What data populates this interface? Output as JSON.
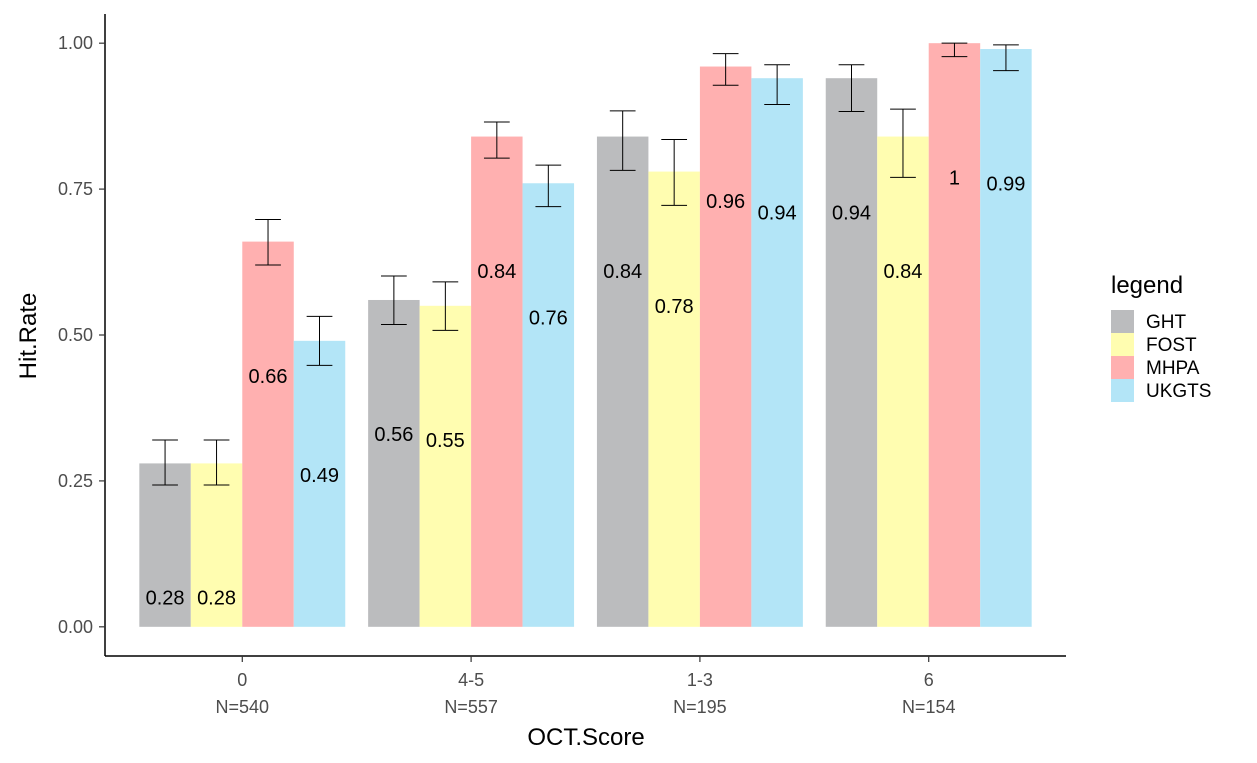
{
  "chart_data": {
    "type": "bar",
    "title": "",
    "xlabel": "OCT.Score",
    "ylabel": "Hit.Rate",
    "ylim": [
      -0.05,
      1.05
    ],
    "yticks": [
      "0.00",
      "0.25",
      "0.50",
      "0.75",
      "1.00"
    ],
    "ytick_values": [
      0,
      0.25,
      0.5,
      0.75,
      1.0
    ],
    "categories": [
      "0",
      "4-5",
      "1-3",
      "6"
    ],
    "category_sublabels": [
      "N=540",
      "N=557",
      "N=195",
      "N=154"
    ],
    "series": [
      {
        "name": "GHT",
        "color": "#BBBCBE",
        "values": [
          0.28,
          0.56,
          0.84,
          0.94
        ],
        "labels": [
          "0.28",
          "0.56",
          "0.84",
          "0.94"
        ],
        "error_low": [
          0.243,
          0.518,
          0.782,
          0.883
        ],
        "error_high": [
          0.32,
          0.601,
          0.884,
          0.963
        ]
      },
      {
        "name": "FOST",
        "color": "#FFFDB0",
        "values": [
          0.28,
          0.55,
          0.78,
          0.84
        ],
        "labels": [
          "0.28",
          "0.55",
          "0.78",
          "0.84"
        ],
        "error_low": [
          0.243,
          0.508,
          0.722,
          0.77
        ],
        "error_high": [
          0.32,
          0.591,
          0.835,
          0.887
        ]
      },
      {
        "name": "MHPA",
        "color": "#FFB0B0",
        "values": [
          0.66,
          0.84,
          0.96,
          1.0
        ],
        "labels": [
          "0.66",
          "0.84",
          "0.96",
          "1"
        ],
        "error_low": [
          0.62,
          0.803,
          0.928,
          0.977
        ],
        "error_high": [
          0.698,
          0.865,
          0.982,
          1.0
        ]
      },
      {
        "name": "UKGTS",
        "color": "#B3E5F7",
        "values": [
          0.49,
          0.76,
          0.94,
          0.99
        ],
        "labels": [
          "0.49",
          "0.76",
          "0.94",
          "0.99"
        ],
        "error_low": [
          0.448,
          0.72,
          0.895,
          0.953
        ],
        "error_high": [
          0.532,
          0.791,
          0.963,
          0.997
        ]
      }
    ],
    "legend": {
      "title": "legend",
      "position": "right"
    },
    "grid": false
  }
}
